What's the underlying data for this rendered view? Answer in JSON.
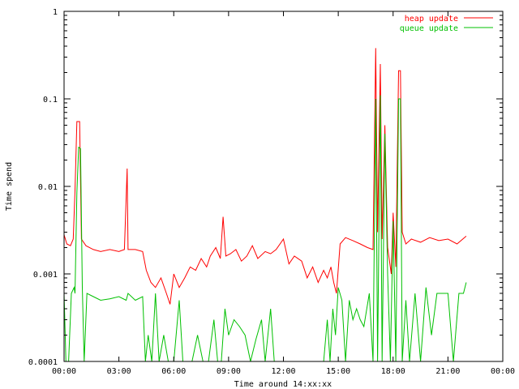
{
  "chart_data": {
    "type": "line",
    "title": "",
    "xlabel": "Time around 14:xx:xx",
    "ylabel": "Time spend",
    "x_unit": "hours",
    "xlim": [
      0,
      24
    ],
    "ylim": [
      0.0001,
      1
    ],
    "y_scale": "log",
    "grid": false,
    "legend_position": "top-right",
    "x_ticks": [
      {
        "value": 0,
        "label": "00:00"
      },
      {
        "value": 3,
        "label": "03:00"
      },
      {
        "value": 6,
        "label": "06:00"
      },
      {
        "value": 9,
        "label": "09:00"
      },
      {
        "value": 12,
        "label": "12:00"
      },
      {
        "value": 15,
        "label": "15:00"
      },
      {
        "value": 18,
        "label": "18:00"
      },
      {
        "value": 21,
        "label": "21:00"
      },
      {
        "value": 24,
        "label": "00:00"
      }
    ],
    "y_ticks": [
      {
        "value": 0.0001,
        "label": "0.0001"
      },
      {
        "value": 0.001,
        "label": "0.001"
      },
      {
        "value": 0.01,
        "label": "0.01"
      },
      {
        "value": 0.1,
        "label": "0.1"
      },
      {
        "value": 1,
        "label": "1"
      }
    ],
    "series": [
      {
        "name": "heap update",
        "color": "#ff0000",
        "points": [
          [
            0.0,
            0.0028
          ],
          [
            0.15,
            0.0022
          ],
          [
            0.35,
            0.0021
          ],
          [
            0.5,
            0.0025
          ],
          [
            0.6,
            0.009
          ],
          [
            0.7,
            0.055
          ],
          [
            0.85,
            0.055
          ],
          [
            0.95,
            0.0025
          ],
          [
            1.2,
            0.0021
          ],
          [
            1.6,
            0.0019
          ],
          [
            2.0,
            0.0018
          ],
          [
            2.5,
            0.0019
          ],
          [
            3.0,
            0.0018
          ],
          [
            3.3,
            0.0019
          ],
          [
            3.45,
            0.016
          ],
          [
            3.5,
            0.0019
          ],
          [
            3.9,
            0.0019
          ],
          [
            4.3,
            0.0018
          ],
          [
            4.5,
            0.0011
          ],
          [
            4.75,
            0.0008
          ],
          [
            5.0,
            0.0007
          ],
          [
            5.3,
            0.0009
          ],
          [
            5.6,
            0.0006
          ],
          [
            5.8,
            0.00045
          ],
          [
            6.0,
            0.001
          ],
          [
            6.3,
            0.0007
          ],
          [
            6.6,
            0.0009
          ],
          [
            6.9,
            0.0012
          ],
          [
            7.2,
            0.0011
          ],
          [
            7.5,
            0.0015
          ],
          [
            7.8,
            0.0012
          ],
          [
            8.0,
            0.0016
          ],
          [
            8.3,
            0.002
          ],
          [
            8.55,
            0.0015
          ],
          [
            8.7,
            0.0045
          ],
          [
            8.85,
            0.0016
          ],
          [
            9.1,
            0.0017
          ],
          [
            9.4,
            0.0019
          ],
          [
            9.7,
            0.0014
          ],
          [
            10.0,
            0.0016
          ],
          [
            10.3,
            0.0021
          ],
          [
            10.6,
            0.0015
          ],
          [
            11.0,
            0.0018
          ],
          [
            11.3,
            0.0017
          ],
          [
            11.6,
            0.0019
          ],
          [
            12.0,
            0.0025
          ],
          [
            12.3,
            0.0013
          ],
          [
            12.6,
            0.0016
          ],
          [
            13.0,
            0.0014
          ],
          [
            13.3,
            0.0009
          ],
          [
            13.6,
            0.0012
          ],
          [
            13.9,
            0.0008
          ],
          [
            14.2,
            0.0011
          ],
          [
            14.4,
            0.0009
          ],
          [
            14.6,
            0.0012
          ],
          [
            14.75,
            0.0008
          ],
          [
            14.9,
            0.0006
          ],
          [
            15.1,
            0.0022
          ],
          [
            15.4,
            0.0026
          ],
          [
            15.8,
            0.0024
          ],
          [
            16.2,
            0.0022
          ],
          [
            16.6,
            0.002
          ],
          [
            16.9,
            0.0019
          ],
          [
            17.05,
            0.38
          ],
          [
            17.15,
            0.003
          ],
          [
            17.3,
            0.25
          ],
          [
            17.4,
            0.0025
          ],
          [
            17.55,
            0.05
          ],
          [
            17.7,
            0.002
          ],
          [
            17.9,
            0.001
          ],
          [
            18.0,
            0.005
          ],
          [
            18.15,
            0.0012
          ],
          [
            18.3,
            0.21
          ],
          [
            18.4,
            0.21
          ],
          [
            18.5,
            0.003
          ],
          [
            18.7,
            0.0022
          ],
          [
            19.0,
            0.0025
          ],
          [
            19.5,
            0.0023
          ],
          [
            20.0,
            0.0026
          ],
          [
            20.5,
            0.0024
          ],
          [
            21.0,
            0.0025
          ],
          [
            21.5,
            0.0022
          ],
          [
            22.0,
            0.0027
          ]
        ]
      },
      {
        "name": "queue update",
        "color": "#00c000",
        "points": [
          [
            0.0,
            0.0006
          ],
          [
            0.1,
            0.0001
          ],
          [
            0.25,
            0.0001
          ],
          [
            0.4,
            0.0006
          ],
          [
            0.55,
            0.0007
          ],
          [
            0.6,
            0.0006
          ],
          [
            0.7,
            0.0085
          ],
          [
            0.8,
            0.028
          ],
          [
            0.9,
            0.027
          ],
          [
            1.0,
            0.0007
          ],
          [
            1.1,
            0.0001
          ],
          [
            1.25,
            0.0006
          ],
          [
            1.6,
            0.00055
          ],
          [
            2.0,
            0.0005
          ],
          [
            2.5,
            0.00052
          ],
          [
            3.0,
            0.00055
          ],
          [
            3.4,
            0.0005
          ],
          [
            3.5,
            0.0006
          ],
          [
            3.9,
            0.0005
          ],
          [
            4.3,
            0.00055
          ],
          [
            4.45,
            0.0001
          ],
          [
            4.6,
            0.0002
          ],
          [
            4.8,
            0.0001
          ],
          [
            5.0,
            0.0006
          ],
          [
            5.2,
            0.0001
          ],
          [
            5.45,
            0.0002
          ],
          [
            5.7,
            0.0001
          ],
          [
            6.0,
            0.0001
          ],
          [
            6.3,
            0.0005
          ],
          [
            6.5,
            0.0001
          ],
          [
            6.7,
            0.0001
          ],
          [
            7.0,
            0.0001
          ],
          [
            7.3,
            0.0002
          ],
          [
            7.6,
            0.0001
          ],
          [
            7.9,
            0.0001
          ],
          [
            8.2,
            0.0003
          ],
          [
            8.4,
            0.0001
          ],
          [
            8.6,
            0.0001
          ],
          [
            8.8,
            0.0004
          ],
          [
            9.0,
            0.0002
          ],
          [
            9.3,
            0.0003
          ],
          [
            9.6,
            0.00025
          ],
          [
            9.9,
            0.0002
          ],
          [
            10.2,
            0.0001
          ],
          [
            10.5,
            0.00018
          ],
          [
            10.8,
            0.0003
          ],
          [
            11.0,
            0.0001
          ],
          [
            11.3,
            0.0004
          ],
          [
            11.5,
            0.0001
          ],
          [
            11.8,
            0.0001
          ],
          [
            12.1,
            0.0001
          ],
          [
            12.4,
            0.0001
          ],
          [
            12.7,
            0.0001
          ],
          [
            13.0,
            0.0001
          ],
          [
            13.3,
            0.0001
          ],
          [
            13.6,
            0.0001
          ],
          [
            13.9,
            0.0001
          ],
          [
            14.2,
            0.0001
          ],
          [
            14.4,
            0.0003
          ],
          [
            14.55,
            0.0001
          ],
          [
            14.7,
            0.0004
          ],
          [
            14.85,
            0.0002
          ],
          [
            15.0,
            0.0007
          ],
          [
            15.2,
            0.0005
          ],
          [
            15.4,
            0.0001
          ],
          [
            15.6,
            0.0005
          ],
          [
            15.8,
            0.0003
          ],
          [
            16.0,
            0.0004
          ],
          [
            16.2,
            0.0003
          ],
          [
            16.4,
            0.00025
          ],
          [
            16.7,
            0.0006
          ],
          [
            16.9,
            0.0001
          ],
          [
            17.05,
            0.1
          ],
          [
            17.15,
            0.0001
          ],
          [
            17.3,
            0.11
          ],
          [
            17.4,
            0.0001
          ],
          [
            17.55,
            0.04
          ],
          [
            17.7,
            0.001
          ],
          [
            17.85,
            0.0001
          ],
          [
            18.0,
            0.004
          ],
          [
            18.15,
            0.0001
          ],
          [
            18.3,
            0.1
          ],
          [
            18.4,
            0.1
          ],
          [
            18.5,
            0.0001
          ],
          [
            18.7,
            0.0005
          ],
          [
            18.9,
            0.0001
          ],
          [
            19.2,
            0.0006
          ],
          [
            19.5,
            0.0001
          ],
          [
            19.8,
            0.0007
          ],
          [
            20.1,
            0.0002
          ],
          [
            20.4,
            0.0006
          ],
          [
            20.7,
            0.0006
          ],
          [
            21.0,
            0.0006
          ],
          [
            21.3,
            0.0001
          ],
          [
            21.6,
            0.0006
          ],
          [
            21.85,
            0.0006
          ],
          [
            22.0,
            0.0008
          ]
        ]
      }
    ]
  }
}
